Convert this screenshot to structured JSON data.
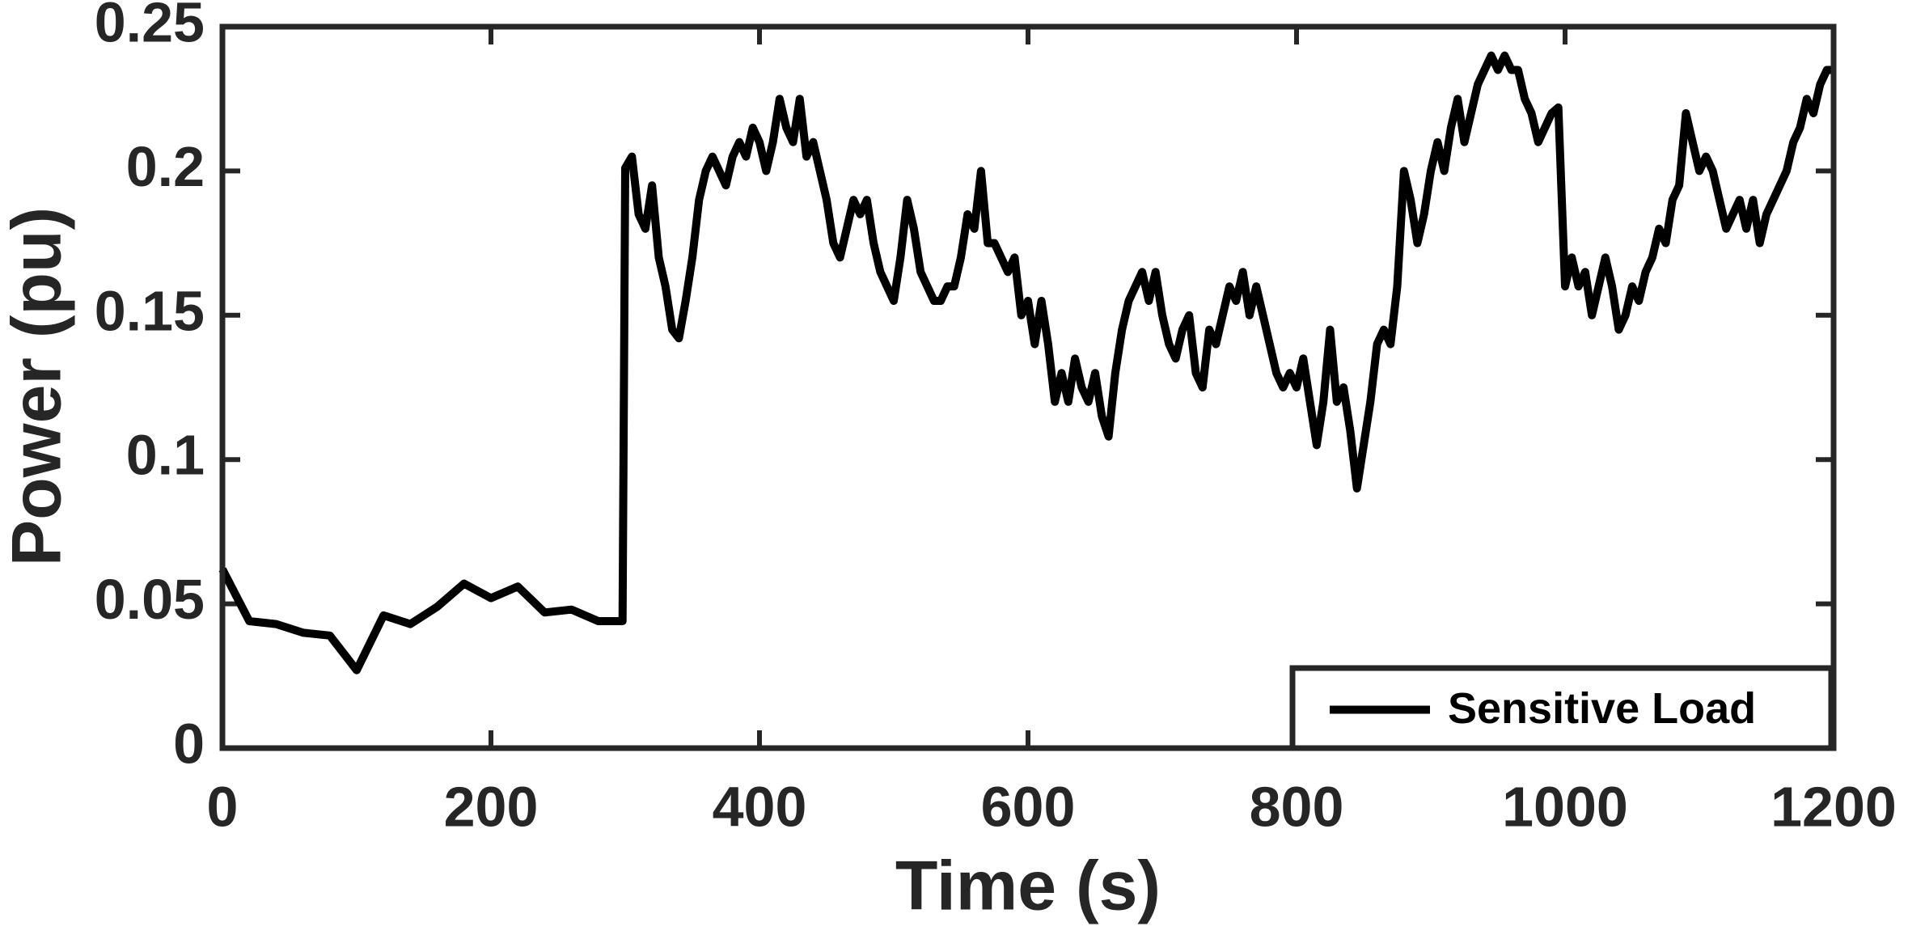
{
  "chart_data": {
    "type": "line",
    "xlabel": "Time (s)",
    "ylabel": "Power (pu)",
    "xlim": [
      0,
      1200
    ],
    "xticks": [
      0,
      200,
      400,
      600,
      800,
      1000,
      1200
    ],
    "ylim": [
      0,
      0.25
    ],
    "yticks": [
      0,
      0.05,
      0.1,
      0.15,
      0.2,
      0.25
    ],
    "grid": false,
    "legend": "lower right",
    "x": [
      0,
      20,
      40,
      60,
      80,
      100,
      120,
      140,
      160,
      180,
      200,
      220,
      240,
      260,
      280,
      298,
      300,
      305,
      310,
      315,
      320,
      325,
      330,
      335,
      340,
      345,
      350,
      355,
      360,
      365,
      370,
      375,
      380,
      385,
      390,
      395,
      400,
      405,
      410,
      415,
      420,
      425,
      430,
      435,
      440,
      445,
      450,
      455,
      460,
      465,
      470,
      475,
      480,
      485,
      490,
      495,
      500,
      505,
      510,
      515,
      520,
      525,
      530,
      535,
      540,
      545,
      550,
      555,
      560,
      565,
      570,
      575,
      580,
      585,
      590,
      595,
      600,
      605,
      610,
      615,
      620,
      625,
      630,
      635,
      640,
      645,
      650,
      655,
      660,
      665,
      670,
      675,
      680,
      685,
      690,
      695,
      700,
      705,
      710,
      715,
      720,
      725,
      730,
      735,
      740,
      745,
      750,
      755,
      760,
      765,
      770,
      775,
      780,
      785,
      790,
      795,
      800,
      805,
      810,
      815,
      820,
      825,
      830,
      835,
      840,
      845,
      850,
      855,
      860,
      865,
      870,
      875,
      880,
      885,
      890,
      895,
      900,
      905,
      910,
      915,
      920,
      925,
      930,
      935,
      940,
      945,
      950,
      955,
      960,
      965,
      970,
      975,
      980,
      985,
      990,
      995,
      1000,
      1005,
      1010,
      1015,
      1020,
      1025,
      1030,
      1035,
      1040,
      1045,
      1050,
      1055,
      1060,
      1065,
      1070,
      1075,
      1080,
      1085,
      1090,
      1095,
      1100,
      1105,
      1110,
      1115,
      1120,
      1125,
      1130,
      1135,
      1140,
      1145,
      1150,
      1155,
      1160,
      1165,
      1170,
      1175,
      1180,
      1185,
      1190,
      1195,
      1200
    ],
    "series": [
      {
        "name": "Sensitive Load",
        "color": "#000000",
        "values": [
          0.062,
          0.044,
          0.043,
          0.04,
          0.039,
          0.027,
          0.046,
          0.043,
          0.049,
          0.057,
          0.052,
          0.056,
          0.047,
          0.048,
          0.044,
          0.044,
          0.201,
          0.205,
          0.185,
          0.18,
          0.195,
          0.17,
          0.16,
          0.145,
          0.142,
          0.155,
          0.17,
          0.19,
          0.2,
          0.205,
          0.2,
          0.195,
          0.205,
          0.21,
          0.205,
          0.215,
          0.21,
          0.2,
          0.21,
          0.225,
          0.215,
          0.21,
          0.225,
          0.205,
          0.21,
          0.2,
          0.19,
          0.175,
          0.17,
          0.18,
          0.19,
          0.185,
          0.19,
          0.175,
          0.165,
          0.16,
          0.155,
          0.17,
          0.19,
          0.18,
          0.165,
          0.16,
          0.155,
          0.155,
          0.16,
          0.16,
          0.17,
          0.185,
          0.18,
          0.2,
          0.175,
          0.175,
          0.17,
          0.165,
          0.17,
          0.15,
          0.155,
          0.14,
          0.155,
          0.14,
          0.12,
          0.13,
          0.12,
          0.135,
          0.125,
          0.12,
          0.13,
          0.115,
          0.108,
          0.13,
          0.145,
          0.155,
          0.16,
          0.165,
          0.155,
          0.165,
          0.15,
          0.14,
          0.135,
          0.145,
          0.15,
          0.13,
          0.125,
          0.145,
          0.14,
          0.15,
          0.16,
          0.155,
          0.165,
          0.15,
          0.16,
          0.15,
          0.14,
          0.13,
          0.125,
          0.13,
          0.125,
          0.135,
          0.12,
          0.105,
          0.12,
          0.145,
          0.12,
          0.125,
          0.11,
          0.09,
          0.105,
          0.12,
          0.14,
          0.145,
          0.14,
          0.16,
          0.2,
          0.19,
          0.175,
          0.185,
          0.2,
          0.21,
          0.2,
          0.215,
          0.225,
          0.21,
          0.22,
          0.23,
          0.235,
          0.24,
          0.235,
          0.24,
          0.235,
          0.235,
          0.225,
          0.22,
          0.21,
          0.215,
          0.22,
          0.222,
          0.16,
          0.17,
          0.16,
          0.165,
          0.15,
          0.16,
          0.17,
          0.16,
          0.145,
          0.15,
          0.16,
          0.155,
          0.165,
          0.17,
          0.18,
          0.175,
          0.19,
          0.195,
          0.22,
          0.21,
          0.2,
          0.205,
          0.2,
          0.19,
          0.18,
          0.185,
          0.19,
          0.18,
          0.19,
          0.175,
          0.185,
          0.19,
          0.195,
          0.2,
          0.21,
          0.215,
          0.225,
          0.22,
          0.23,
          0.235,
          0.235
        ]
      }
    ]
  }
}
